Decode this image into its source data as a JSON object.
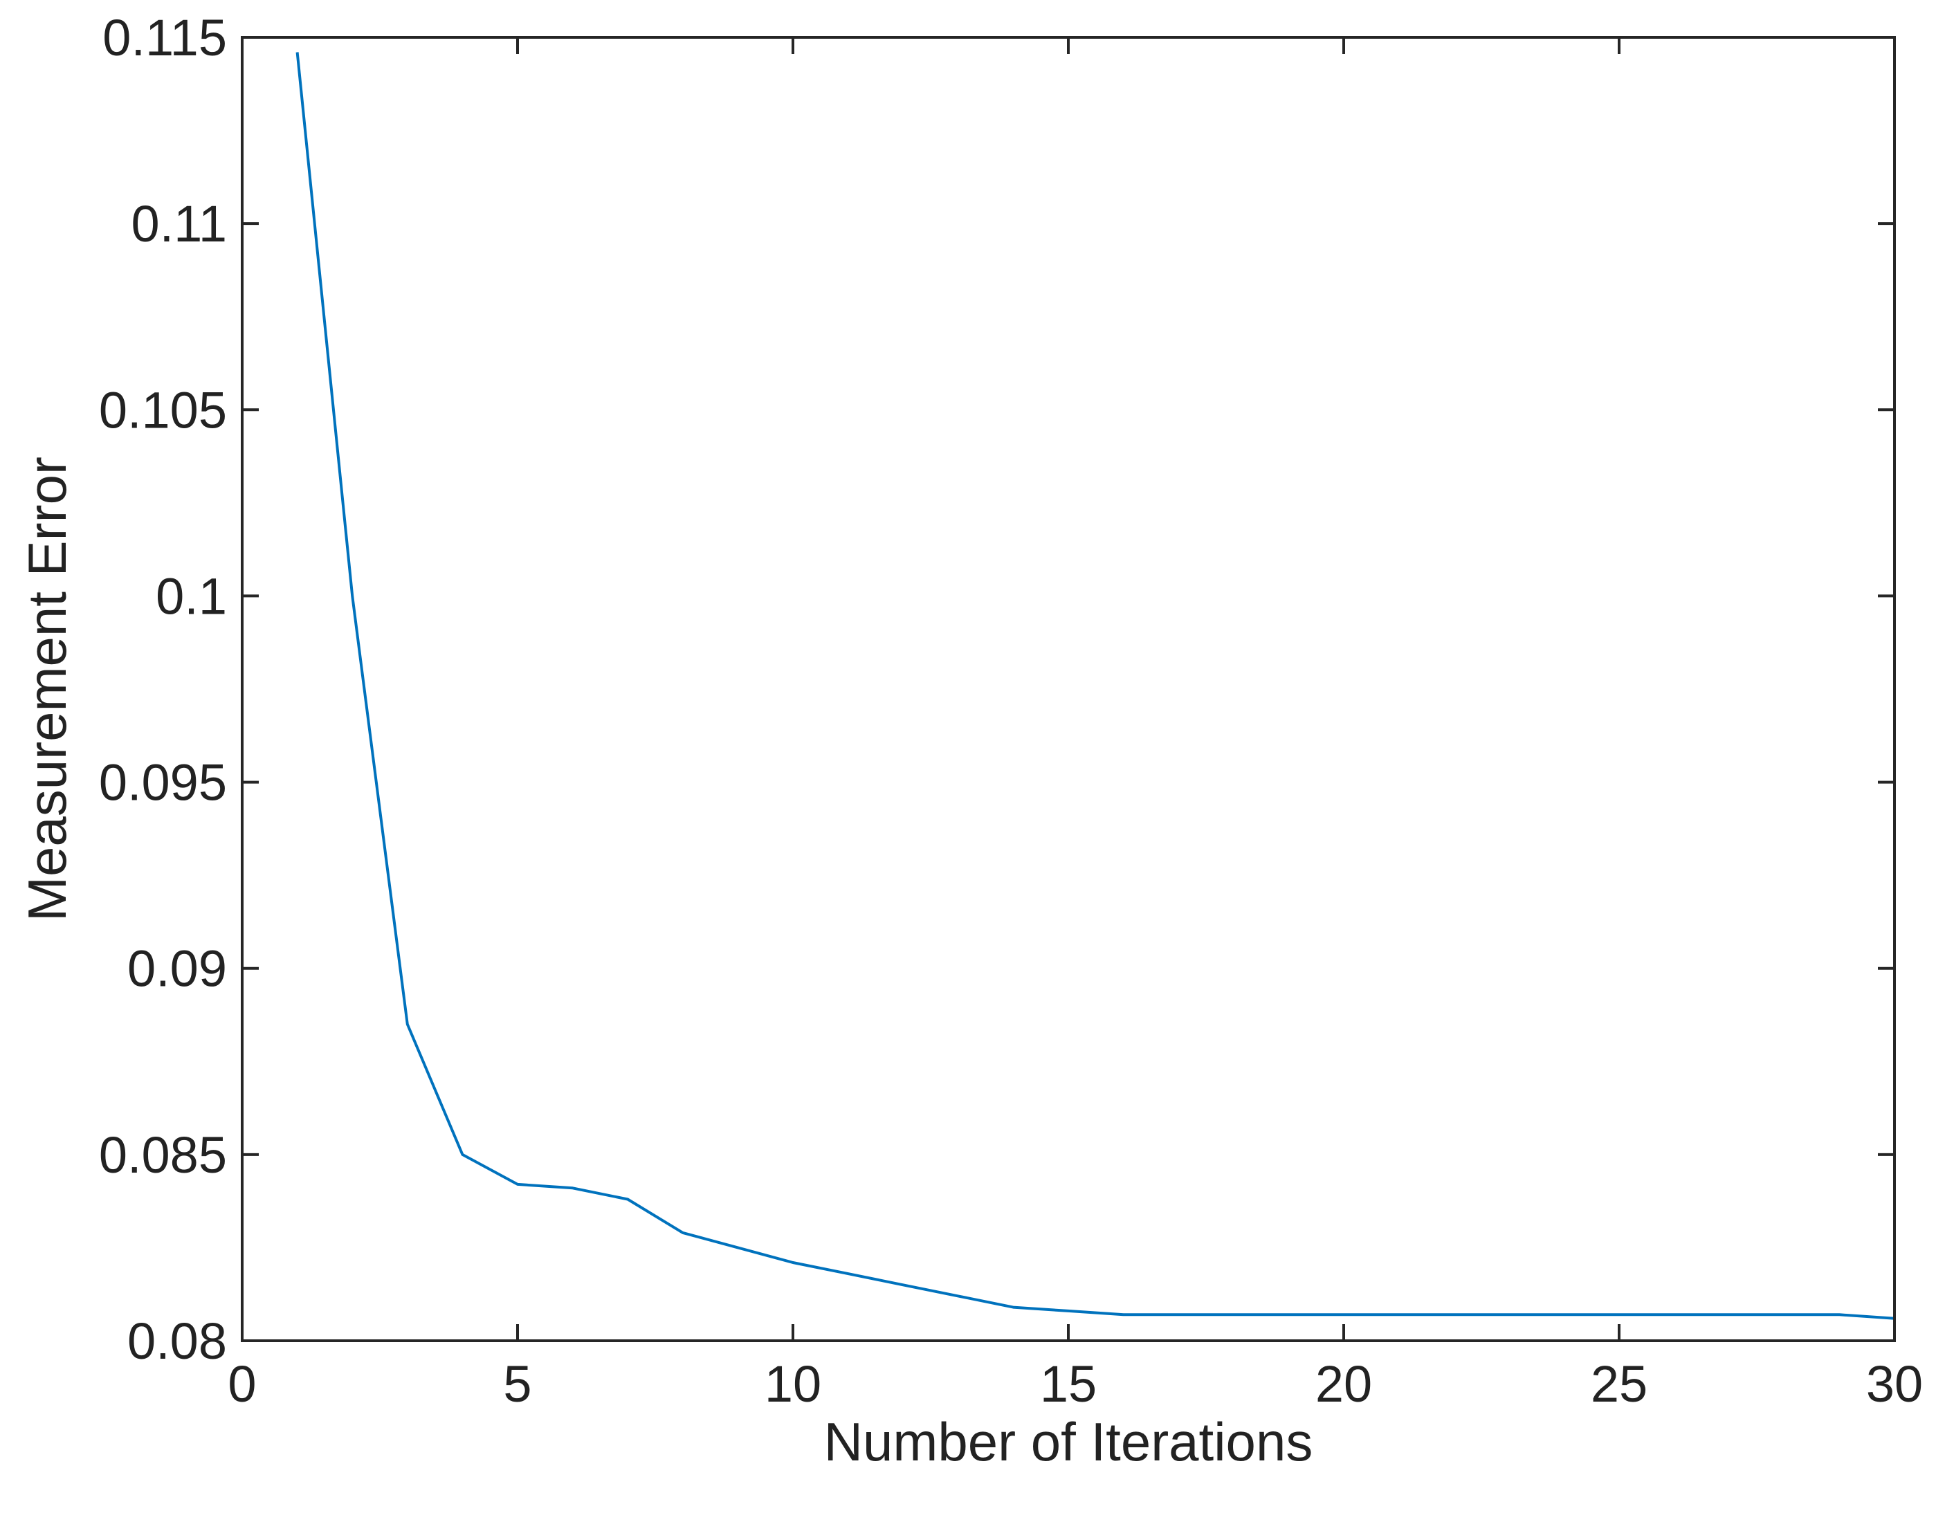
{
  "chart_data": {
    "type": "line",
    "title": "",
    "xlabel": "Number of Iterations",
    "ylabel": "Measurement Error",
    "xlim": [
      0,
      30
    ],
    "ylim": [
      0.08,
      0.115
    ],
    "xticks": [
      0,
      5,
      10,
      15,
      20,
      25,
      30
    ],
    "xtick_labels": [
      "0",
      "5",
      "10",
      "15",
      "20",
      "25",
      "30"
    ],
    "yticks": [
      0.08,
      0.085,
      0.09,
      0.095,
      0.1,
      0.105,
      0.11,
      0.115
    ],
    "ytick_labels": [
      "0.08",
      "0.085",
      "0.09",
      "0.095",
      "0.1",
      "0.105",
      "0.11",
      "0.115"
    ],
    "grid": false,
    "legend": "none",
    "colors": {
      "line": "#0072BD",
      "axes": "#262626",
      "text": "#222222"
    },
    "series": [
      {
        "x": [
          1,
          2,
          3,
          4,
          5,
          6,
          7,
          8,
          9,
          10,
          11,
          12,
          13,
          14,
          15,
          16,
          17,
          18,
          19,
          20,
          21,
          22,
          23,
          24,
          25,
          26,
          27,
          28,
          29,
          30
        ],
        "values": [
          0.1146,
          0.1,
          0.0885,
          0.085,
          0.0842,
          0.0841,
          0.0838,
          0.0829,
          0.0825,
          0.0821,
          0.0818,
          0.0815,
          0.0812,
          0.0809,
          0.0808,
          0.0807,
          0.0807,
          0.0807,
          0.0807,
          0.0807,
          0.0807,
          0.0807,
          0.0807,
          0.0807,
          0.0807,
          0.0807,
          0.0807,
          0.0807,
          0.0807,
          0.0806
        ]
      }
    ]
  }
}
